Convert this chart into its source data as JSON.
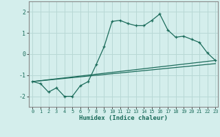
{
  "xlabel": "Humidex (Indice chaleur)",
  "ylabel": "",
  "xlim": [
    -0.5,
    23.3
  ],
  "ylim": [
    -2.5,
    2.5
  ],
  "xticks": [
    0,
    1,
    2,
    3,
    4,
    5,
    6,
    7,
    8,
    9,
    10,
    11,
    12,
    13,
    14,
    15,
    16,
    17,
    18,
    19,
    20,
    21,
    22,
    23
  ],
  "yticks": [
    -2,
    -1,
    0,
    1,
    2
  ],
  "bg_color": "#d4eeec",
  "grid_color": "#b8d8d5",
  "line_color": "#1a6b5a",
  "line1_x": [
    0,
    1,
    2,
    3,
    4,
    5,
    6,
    7,
    8,
    9,
    10,
    11,
    12,
    13,
    14,
    15,
    16,
    17,
    18,
    19,
    20,
    21,
    22,
    23
  ],
  "line1_y": [
    -1.3,
    -1.4,
    -1.8,
    -1.6,
    -2.0,
    -2.0,
    -1.5,
    -1.3,
    -0.5,
    0.35,
    1.55,
    1.6,
    1.45,
    1.35,
    1.35,
    1.6,
    1.9,
    1.15,
    0.8,
    0.85,
    0.7,
    0.55,
    0.05,
    -0.3
  ],
  "line2_x": [
    0,
    23
  ],
  "line2_y": [
    -1.3,
    -0.3
  ],
  "line3_x": [
    0,
    23
  ],
  "line3_y": [
    -1.3,
    -0.45
  ]
}
